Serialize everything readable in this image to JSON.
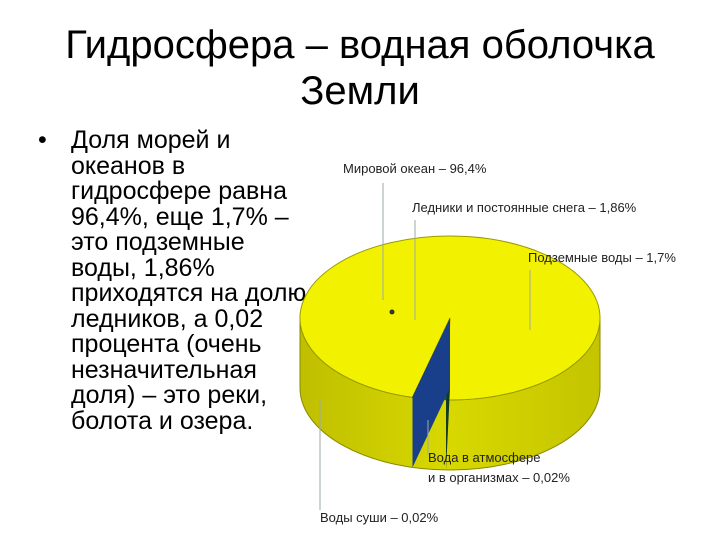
{
  "slide": {
    "title": "Гидросфера – водная оболочка\nЗемли",
    "bullet": "•",
    "bullet_text": "Доля морей и\nокеанов в\nгидросфере равна\n96,4%, еще 1,7% –\nэто подземные\nводы, 1,86%\nприходятся на долю\nледников, а 0,02\nпроцента (очень\nнезначительная\nдоля) – это реки,\nболота и озера."
  },
  "chart_data": {
    "type": "pie",
    "style": "3d",
    "slices": [
      {
        "label": "Мировой океан – 96,4%",
        "value": 96.4,
        "color": "#f2f200"
      },
      {
        "label": "Ледники и постоянные снега – 1,86%",
        "value": 1.86,
        "color": "#1e4fa0"
      },
      {
        "label": "Подземные воды – 1,7%",
        "value": 1.7,
        "color": "#2a6a3a"
      },
      {
        "label": "Вода в атмосфере\nи в организмах – 0,02%",
        "value": 0.02,
        "color": "#0b2a1a"
      },
      {
        "label": "Воды суши – 0,02%",
        "value": 0.02,
        "color": "#123c22"
      }
    ]
  }
}
